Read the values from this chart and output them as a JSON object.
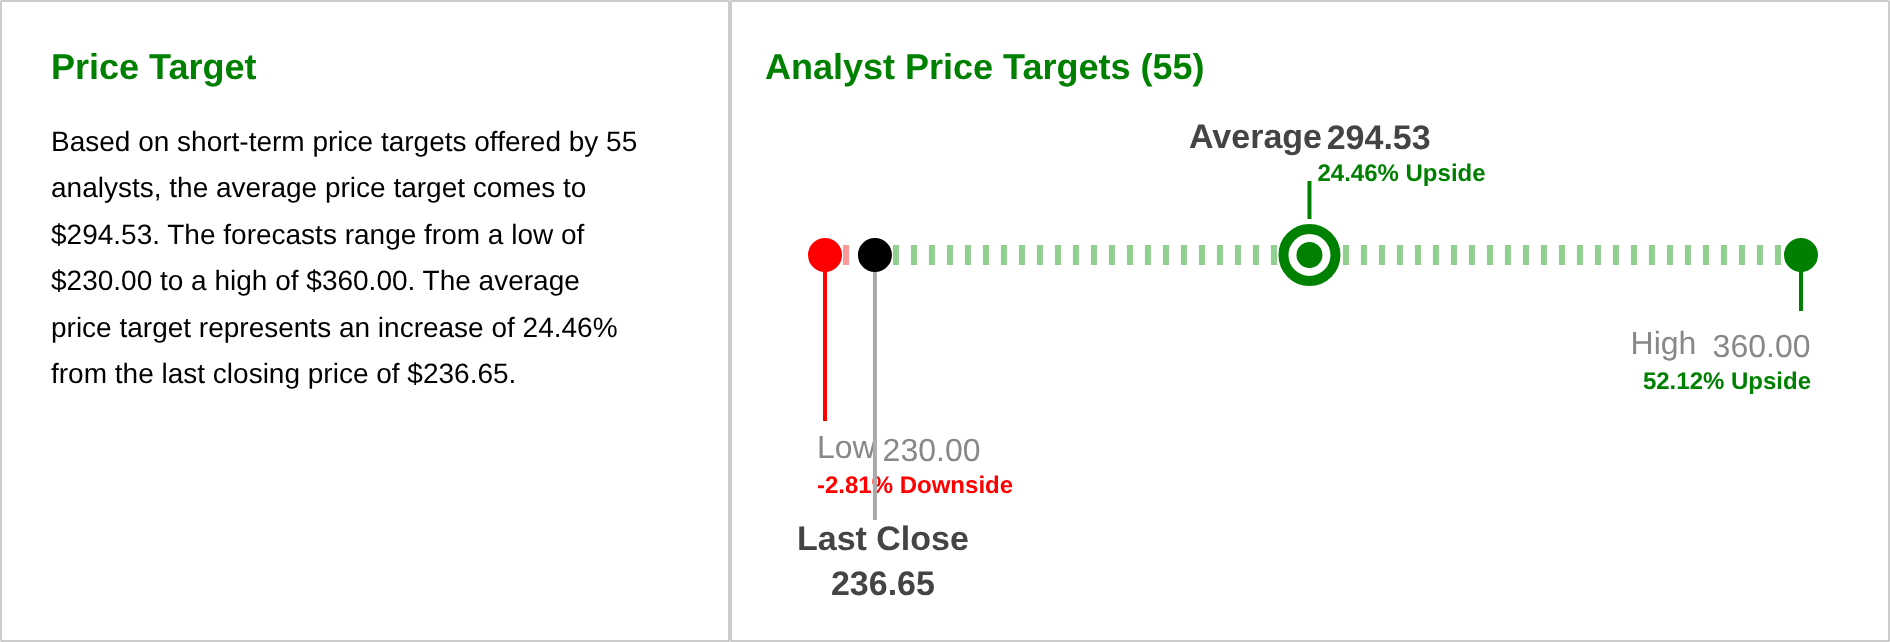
{
  "chart_data": [
    {
      "type": "other",
      "title": "Price Target",
      "annotations": [
        "Based on short-term price targets offered by 55\nanalysts, the average price target comes to\n$294.53. The forecasts range from a low of\n$230.00 to a high of $360.00. The average\nprice target represents an increase of 24.46%\nfrom the last closing price of $236.65."
      ]
    },
    {
      "type": "other",
      "title": "Analyst Price Targets (55)",
      "categories": [
        "Low",
        "Last Close",
        "Average",
        "High"
      ],
      "values": [
        230,
        236.65,
        294.53,
        360
      ],
      "value_labels": [
        "230.00",
        "236.65",
        "294.53",
        "360.00"
      ],
      "colors": [
        "#ff0000",
        "#000000",
        "#008000",
        "#008000"
      ],
      "annotations": [
        {
          "text": "-2.81% Downside",
          "x": "Low"
        },
        {
          "text": "24.46% Upside",
          "x": "Average"
        },
        {
          "text": "52.12% Upside",
          "x": "High"
        }
      ]
    }
  ]
}
